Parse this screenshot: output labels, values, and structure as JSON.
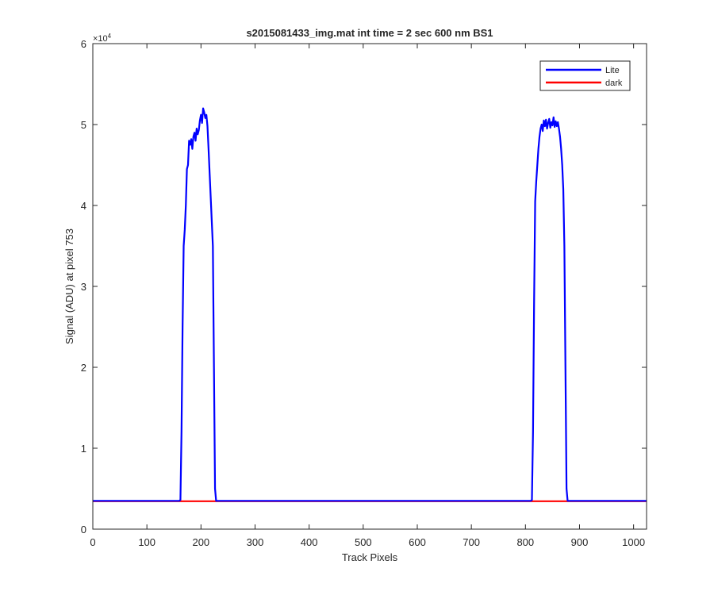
{
  "chart_data": {
    "type": "line",
    "title": "s2015081433_img.mat int time = 2 sec  600 nm BS1",
    "xlabel": "Track Pixels",
    "ylabel": "Signal (ADU) at pixel 753",
    "xlim": [
      0,
      1024
    ],
    "ylim": [
      0,
      60000
    ],
    "y_exponent_label": "×10",
    "y_exponent_power": "4",
    "x_ticks": [
      0,
      100,
      200,
      300,
      400,
      500,
      600,
      700,
      800,
      900,
      1000
    ],
    "x_tick_labels": [
      "0",
      "100",
      "200",
      "300",
      "400",
      "500",
      "600",
      "700",
      "800",
      "900",
      "1000"
    ],
    "y_ticks": [
      0,
      10000,
      20000,
      30000,
      40000,
      50000,
      60000
    ],
    "y_tick_labels": [
      "0",
      "1",
      "2",
      "3",
      "4",
      "5",
      "6"
    ],
    "grid": false,
    "legend_position": "top-right",
    "series": [
      {
        "name": "Lite",
        "color": "#0000ff",
        "x": [
          0,
          160,
          162,
          164,
          166,
          168,
          170,
          172,
          174,
          176,
          178,
          180,
          182,
          184,
          186,
          188,
          190,
          192,
          194,
          196,
          198,
          200,
          202,
          204,
          206,
          208,
          210,
          212,
          214,
          216,
          218,
          220,
          222,
          224,
          226,
          228,
          230,
          235,
          400,
          600,
          805,
          810,
          812,
          814,
          816,
          818,
          820,
          822,
          824,
          826,
          828,
          830,
          832,
          834,
          836,
          838,
          840,
          842,
          844,
          846,
          848,
          850,
          852,
          854,
          856,
          858,
          860,
          862,
          864,
          866,
          868,
          870,
          872,
          874,
          876,
          878,
          880,
          890,
          1024
        ],
        "y": [
          3500,
          3500,
          3600,
          12000,
          25000,
          35000,
          37000,
          40000,
          44500,
          45000,
          48000,
          47500,
          48200,
          47000,
          48500,
          49000,
          48000,
          49500,
          48800,
          49300,
          50500,
          51200,
          50200,
          52000,
          51500,
          50800,
          51200,
          49800,
          47000,
          44000,
          41000,
          38000,
          35000,
          20000,
          5000,
          3500,
          3500,
          3500,
          3500,
          3500,
          3500,
          3500,
          3600,
          12000,
          28000,
          40500,
          43000,
          45000,
          47000,
          48500,
          49500,
          50000,
          49200,
          50500,
          49800,
          50600,
          49500,
          50200,
          50700,
          49600,
          50300,
          49900,
          50900,
          49700,
          50400,
          49800,
          50300,
          49500,
          48500,
          47000,
          45000,
          42000,
          35000,
          20000,
          5000,
          3500,
          3500,
          3500,
          3500
        ]
      },
      {
        "name": "dark",
        "color": "#ff0000",
        "x": [
          0,
          1024
        ],
        "y": [
          3450,
          3450
        ]
      }
    ]
  }
}
